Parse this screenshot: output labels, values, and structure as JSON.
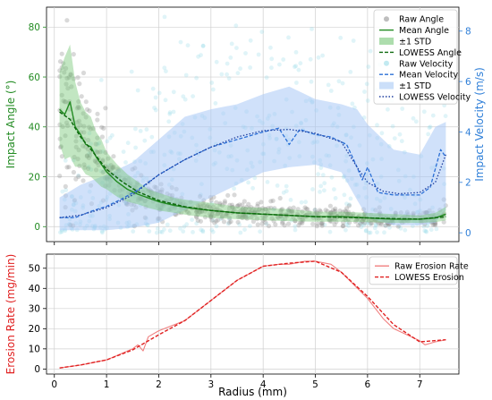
{
  "chart_data": [
    {
      "type": "scatter",
      "title": "",
      "xlabel": "",
      "ylabel": "Impact Angle (°)",
      "ylabel_right": "Impact Velocity (m/s)",
      "xlim": [
        -0.15,
        7.75
      ],
      "ylim": [
        -6,
        88
      ],
      "ylim_right": [
        -0.35,
        8.95
      ],
      "yticks": [
        0,
        20,
        40,
        60,
        80
      ],
      "yticks_right": [
        0,
        2,
        4,
        6,
        8
      ],
      "grid": true,
      "legend_position": "top-right",
      "colors": {
        "angle": "#228B22",
        "angle_band": "#77c777",
        "velocity": "#2a6fd6",
        "velocity_band": "#a9c9f5",
        "raw_angle": "#888888",
        "raw_velocity": "#8fd9e6",
        "left_axis": "#228B22",
        "right_axis": "#2f7fd8"
      },
      "legend": [
        {
          "label": "Raw Angle",
          "kind": "marker-gray"
        },
        {
          "label": "Mean Angle",
          "kind": "line-solid-green"
        },
        {
          "label": "±1 STD",
          "kind": "band-green"
        },
        {
          "label": "LOWESS Angle",
          "kind": "line-dashed-green"
        },
        {
          "label": "Raw Velocity",
          "kind": "marker-cyan"
        },
        {
          "label": "Mean Velocity",
          "kind": "line-dashed-blue"
        },
        {
          "label": "±1 STD",
          "kind": "band-blue"
        },
        {
          "label": "LOWESS Velocity",
          "kind": "line-dotted-blue"
        }
      ],
      "series": [
        {
          "name": "Mean Angle",
          "axis": "left",
          "x": [
            0.1,
            0.2,
            0.3,
            0.4,
            0.5,
            0.6,
            0.7,
            0.8,
            0.9,
            1.0,
            1.2,
            1.4,
            1.6,
            1.8,
            2.0,
            2.3,
            2.6,
            3.0,
            3.5,
            4.0,
            4.5,
            5.0,
            5.5,
            6.0,
            6.5,
            7.0,
            7.3,
            7.5
          ],
          "y": [
            47,
            45,
            50,
            40,
            37,
            33,
            32,
            28,
            25,
            22,
            18,
            15,
            13,
            11.5,
            10,
            8.5,
            7.5,
            6.5,
            5.5,
            5,
            4.5,
            4,
            4,
            3.5,
            3,
            3,
            3.5,
            5
          ]
        },
        {
          "name": "LOWESS Angle",
          "axis": "left",
          "x": [
            0.1,
            0.3,
            0.5,
            0.7,
            1.0,
            1.3,
            1.6,
            2.0,
            2.5,
            3.0,
            3.5,
            4.0,
            4.5,
            5.0,
            5.5,
            6.0,
            6.5,
            7.0,
            7.5
          ],
          "y": [
            46,
            43,
            36,
            31,
            23,
            18,
            14,
            10.5,
            8,
            6.5,
            5.5,
            5,
            4.5,
            4,
            3.8,
            3.5,
            3.2,
            3,
            4
          ]
        },
        {
          "name": "±1 STD (angle) lower",
          "axis": "left",
          "x": [
            0.1,
            0.2,
            0.3,
            0.4,
            0.5,
            0.6,
            0.7,
            0.8,
            0.9,
            1.0,
            1.2,
            1.4,
            1.6,
            1.8,
            2.0,
            2.3,
            2.6,
            3.0,
            3.5,
            4.0,
            4.5,
            5.0,
            5.5,
            6.0,
            6.5,
            7.0,
            7.3,
            7.5
          ],
          "y": [
            33,
            27,
            28,
            24,
            24,
            21,
            20,
            18,
            16,
            15,
            12,
            10,
            9,
            7.5,
            6.5,
            5.5,
            4.5,
            3.5,
            3,
            2.5,
            2.2,
            2,
            2,
            1.8,
            1.5,
            1.5,
            1.8,
            2.5
          ]
        },
        {
          "name": "±1 STD (angle) upper",
          "axis": "left",
          "x": [
            0.1,
            0.2,
            0.3,
            0.4,
            0.5,
            0.6,
            0.7,
            0.8,
            0.9,
            1.0,
            1.2,
            1.4,
            1.6,
            1.8,
            2.0,
            2.3,
            2.6,
            3.0,
            3.5,
            4.0,
            4.5,
            5.0,
            5.5,
            6.0,
            6.5,
            7.0,
            7.3,
            7.5
          ],
          "y": [
            62,
            68,
            73,
            58,
            50,
            46,
            44,
            38,
            35,
            30,
            25,
            21,
            18,
            15,
            13.5,
            11.5,
            10.5,
            9.5,
            8,
            7.5,
            7,
            6,
            6,
            5.5,
            5,
            4.5,
            5.5,
            8
          ]
        },
        {
          "name": "Mean Velocity",
          "axis": "right",
          "x": [
            0.1,
            0.4,
            0.7,
            1.0,
            1.3,
            1.6,
            2.0,
            2.5,
            3.0,
            3.5,
            4.0,
            4.3,
            4.5,
            4.7,
            5.0,
            5.3,
            5.6,
            5.8,
            5.9,
            6.0,
            6.2,
            6.5,
            6.8,
            7.0,
            7.2,
            7.4,
            7.5
          ],
          "y": [
            0.6,
            0.6,
            0.85,
            1.05,
            1.35,
            1.7,
            2.3,
            2.9,
            3.4,
            3.7,
            4.0,
            4.15,
            3.5,
            4.1,
            3.9,
            3.8,
            3.5,
            2.6,
            2.1,
            2.6,
            1.6,
            1.5,
            1.5,
            1.5,
            1.8,
            3.3,
            3.0
          ]
        },
        {
          "name": "LOWESS Velocity",
          "axis": "right",
          "x": [
            0.1,
            0.5,
            1.0,
            1.5,
            2.0,
            2.5,
            3.0,
            3.5,
            4.0,
            4.5,
            5.0,
            5.5,
            5.8,
            6.0,
            6.3,
            6.6,
            7.0,
            7.3,
            7.5
          ],
          "y": [
            0.6,
            0.7,
            1.0,
            1.5,
            2.3,
            2.9,
            3.4,
            3.8,
            4.05,
            4.1,
            3.95,
            3.6,
            2.6,
            2.0,
            1.65,
            1.55,
            1.6,
            2.0,
            3.1
          ]
        },
        {
          "name": "±1 STD (velocity) lower",
          "axis": "right",
          "x": [
            0.1,
            0.5,
            1.0,
            1.5,
            2.0,
            2.5,
            3.0,
            3.5,
            4.0,
            4.5,
            5.0,
            5.5,
            5.8,
            6.0,
            6.5,
            7.0,
            7.3,
            7.5
          ],
          "y": [
            0.1,
            0.1,
            0.1,
            0.2,
            0.4,
            0.9,
            1.4,
            1.9,
            2.4,
            2.6,
            2.7,
            2.4,
            1.3,
            0.6,
            0.3,
            0.3,
            0.4,
            0.9
          ]
        },
        {
          "name": "±1 STD (velocity) upper",
          "axis": "right",
          "x": [
            0.1,
            0.5,
            1.0,
            1.5,
            2.0,
            2.5,
            3.0,
            3.5,
            4.0,
            4.5,
            5.0,
            5.5,
            5.8,
            6.0,
            6.5,
            7.0,
            7.3,
            7.5
          ],
          "y": [
            1.4,
            1.9,
            2.3,
            2.8,
            3.7,
            4.6,
            4.9,
            5.1,
            5.5,
            5.8,
            5.3,
            5.1,
            4.9,
            4.3,
            3.3,
            3.1,
            4.2,
            4.4
          ]
        }
      ]
    },
    {
      "type": "line",
      "title": "",
      "xlabel": "Radius (mm)",
      "ylabel": "Erosion Rate (mg/min)",
      "xlim": [
        -0.15,
        7.75
      ],
      "ylim": [
        -2.5,
        57
      ],
      "xticks": [
        0,
        1,
        2,
        3,
        4,
        5,
        6,
        7
      ],
      "yticks": [
        0,
        10,
        20,
        30,
        40,
        50
      ],
      "grid": true,
      "legend_position": "top-right",
      "colors": {
        "erosion": "#e02020",
        "axis_label": "#e02020"
      },
      "legend": [
        {
          "label": "Raw Erosion Rate",
          "kind": "line-solid-red"
        },
        {
          "label": "LOWESS Erosion",
          "kind": "line-dashed-red"
        }
      ],
      "series": [
        {
          "name": "Raw Erosion Rate",
          "x": [
            0.1,
            0.5,
            1.0,
            1.5,
            1.6,
            1.7,
            1.8,
            2.0,
            2.5,
            3.0,
            3.5,
            4.0,
            4.3,
            4.5,
            4.8,
            5.0,
            5.3,
            5.5,
            6.0,
            6.3,
            6.5,
            7.0,
            7.1,
            7.3,
            7.5
          ],
          "y": [
            0.5,
            2,
            4.5,
            10,
            12,
            9,
            16,
            19,
            24,
            34,
            44,
            51,
            52,
            52,
            53.5,
            53.5,
            52,
            48,
            35,
            25,
            20,
            14,
            12,
            13.5,
            14.5
          ]
        },
        {
          "name": "LOWESS Erosion",
          "x": [
            0.1,
            0.5,
            1.0,
            1.5,
            2.0,
            2.5,
            3.0,
            3.5,
            4.0,
            4.5,
            5.0,
            5.5,
            6.0,
            6.5,
            7.0,
            7.5
          ],
          "y": [
            0.5,
            2,
            4.5,
            9.5,
            17,
            24,
            34,
            44,
            51,
            52.5,
            53.5,
            48,
            36,
            22,
            13.5,
            14.5
          ]
        }
      ]
    }
  ]
}
